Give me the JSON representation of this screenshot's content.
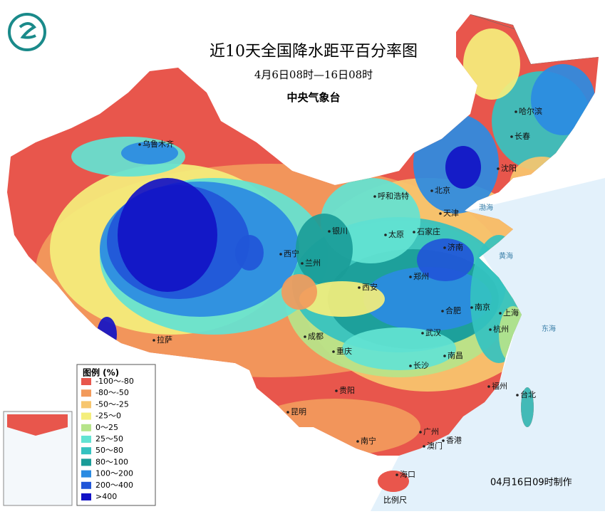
{
  "header": {
    "title": "近10天全国降水距平百分率图",
    "subtitle": "4月6日08时—16日08时",
    "agency": "中央气象台"
  },
  "legend": {
    "title": "图例 (%)",
    "items": [
      {
        "label": "-100～-80",
        "color": "#e8564c"
      },
      {
        "label": "-80～-50",
        "color": "#f29a5c"
      },
      {
        "label": "-50～-25",
        "color": "#f7c66e"
      },
      {
        "label": "-25～0",
        "color": "#f4ee7c"
      },
      {
        "label": "0～25",
        "color": "#b6e48a"
      },
      {
        "label": "25～50",
        "color": "#63e3d3"
      },
      {
        "label": "50～80",
        "color": "#34c2c0"
      },
      {
        "label": "80～100",
        "color": "#1a9c98"
      },
      {
        "label": "100～200",
        "color": "#2b8be2"
      },
      {
        "label": "200～400",
        "color": "#2156d8"
      },
      {
        "label": ">400",
        "color": "#1212c6"
      }
    ]
  },
  "cities": [
    "乌鲁木齐",
    "哈尔滨",
    "长春",
    "沈阳",
    "呼和浩特",
    "北京",
    "天津",
    "银川",
    "太原",
    "石家庄",
    "西宁",
    "兰州",
    "济南",
    "郑州",
    "西安",
    "南京",
    "合肥",
    "上海",
    "成都",
    "武汉",
    "杭州",
    "重庆",
    "长沙",
    "南昌",
    "拉萨",
    "贵阳",
    "福州",
    "台北",
    "昆明",
    "南宁",
    "广州",
    "澳门",
    "香港",
    "海口"
  ],
  "seas": [
    "渤海",
    "黄海",
    "东海"
  ],
  "footer": {
    "made": "04月16日09时制作",
    "scale": "比例尺"
  }
}
